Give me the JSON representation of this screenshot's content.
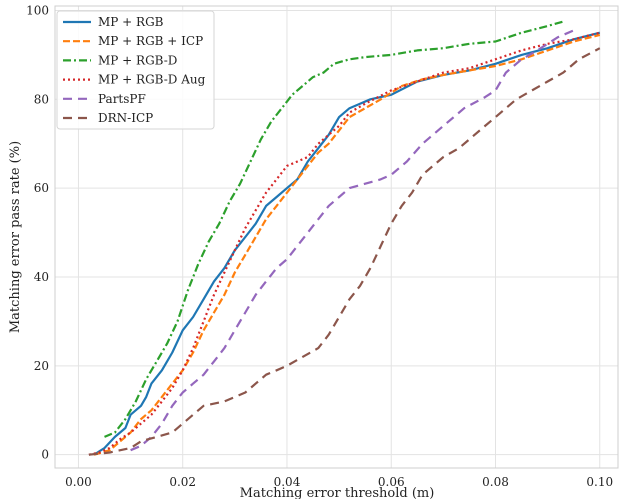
{
  "chart_data": {
    "type": "line",
    "title": "",
    "xlabel": "Matching error threshold (m)",
    "ylabel": "Matching error pass rate (%)",
    "xlim": [
      -0.0045,
      0.1035
    ],
    "ylim": [
      -3,
      101
    ],
    "xticks": [
      0.0,
      0.02,
      0.04,
      0.06,
      0.08,
      0.1
    ],
    "xtick_labels": [
      "0.00",
      "0.02",
      "0.04",
      "0.06",
      "0.08",
      "0.10"
    ],
    "yticks": [
      0,
      20,
      40,
      60,
      80,
      100
    ],
    "ytick_labels": [
      "0",
      "20",
      "40",
      "60",
      "80",
      "100"
    ],
    "grid": true,
    "legend_position": "top-left",
    "series": [
      {
        "name": "MP + RGB",
        "color": "#1f77b4",
        "style": "solid",
        "points": [
          [
            0.003,
            0
          ],
          [
            0.005,
            1.5
          ],
          [
            0.007,
            4
          ],
          [
            0.009,
            6
          ],
          [
            0.01,
            9
          ],
          [
            0.012,
            11
          ],
          [
            0.013,
            13
          ],
          [
            0.014,
            16
          ],
          [
            0.016,
            19
          ],
          [
            0.018,
            23
          ],
          [
            0.02,
            28
          ],
          [
            0.022,
            31
          ],
          [
            0.024,
            35
          ],
          [
            0.026,
            39
          ],
          [
            0.028,
            42
          ],
          [
            0.03,
            46
          ],
          [
            0.032,
            49
          ],
          [
            0.034,
            52
          ],
          [
            0.036,
            56
          ],
          [
            0.038,
            58
          ],
          [
            0.04,
            60
          ],
          [
            0.042,
            62
          ],
          [
            0.044,
            66
          ],
          [
            0.046,
            69
          ],
          [
            0.048,
            72
          ],
          [
            0.05,
            76
          ],
          [
            0.052,
            78
          ],
          [
            0.054,
            79
          ],
          [
            0.056,
            80
          ],
          [
            0.06,
            81
          ],
          [
            0.065,
            84
          ],
          [
            0.07,
            85.5
          ],
          [
            0.075,
            86.5
          ],
          [
            0.08,
            88
          ],
          [
            0.085,
            90
          ],
          [
            0.09,
            91.5
          ],
          [
            0.095,
            93.5
          ],
          [
            0.1,
            95
          ]
        ]
      },
      {
        "name": "MP + RGB + ICP",
        "color": "#ff7f0e",
        "style": "dashed",
        "points": [
          [
            0.003,
            0
          ],
          [
            0.006,
            1
          ],
          [
            0.008,
            3
          ],
          [
            0.01,
            5
          ],
          [
            0.012,
            8
          ],
          [
            0.014,
            10
          ],
          [
            0.016,
            13
          ],
          [
            0.018,
            16
          ],
          [
            0.02,
            19
          ],
          [
            0.022,
            23
          ],
          [
            0.024,
            28
          ],
          [
            0.026,
            32
          ],
          [
            0.028,
            36
          ],
          [
            0.03,
            41
          ],
          [
            0.032,
            45
          ],
          [
            0.034,
            49
          ],
          [
            0.036,
            53
          ],
          [
            0.038,
            56
          ],
          [
            0.04,
            59
          ],
          [
            0.042,
            62
          ],
          [
            0.044,
            65
          ],
          [
            0.046,
            68
          ],
          [
            0.048,
            70
          ],
          [
            0.05,
            73
          ],
          [
            0.052,
            76
          ],
          [
            0.055,
            78
          ],
          [
            0.058,
            80
          ],
          [
            0.062,
            83
          ],
          [
            0.066,
            84.5
          ],
          [
            0.07,
            85.5
          ],
          [
            0.075,
            86.5
          ],
          [
            0.08,
            87.5
          ],
          [
            0.085,
            89
          ],
          [
            0.09,
            91
          ],
          [
            0.095,
            93
          ],
          [
            0.1,
            94.5
          ]
        ]
      },
      {
        "name": "MP + RGB-D",
        "color": "#2ca02c",
        "style": "dashdot",
        "points": [
          [
            0.005,
            4
          ],
          [
            0.007,
            5
          ],
          [
            0.009,
            8
          ],
          [
            0.011,
            12
          ],
          [
            0.013,
            17
          ],
          [
            0.015,
            21
          ],
          [
            0.017,
            25
          ],
          [
            0.019,
            30
          ],
          [
            0.021,
            37
          ],
          [
            0.023,
            43
          ],
          [
            0.025,
            48
          ],
          [
            0.027,
            52
          ],
          [
            0.029,
            57
          ],
          [
            0.031,
            61
          ],
          [
            0.033,
            66
          ],
          [
            0.035,
            71
          ],
          [
            0.037,
            75
          ],
          [
            0.039,
            78
          ],
          [
            0.041,
            81
          ],
          [
            0.043,
            83
          ],
          [
            0.045,
            85
          ],
          [
            0.047,
            86
          ],
          [
            0.049,
            88
          ],
          [
            0.052,
            89
          ],
          [
            0.055,
            89.5
          ],
          [
            0.06,
            90
          ],
          [
            0.065,
            91
          ],
          [
            0.07,
            91.5
          ],
          [
            0.075,
            92.5
          ],
          [
            0.08,
            93
          ],
          [
            0.085,
            95
          ],
          [
            0.09,
            96.5
          ],
          [
            0.093,
            97.5
          ]
        ]
      },
      {
        "name": "MP + RGB-D Aug",
        "color": "#d62728",
        "style": "dotted",
        "points": [
          [
            0.002,
            0
          ],
          [
            0.004,
            0.5
          ],
          [
            0.006,
            1.5
          ],
          [
            0.008,
            3.5
          ],
          [
            0.01,
            5
          ],
          [
            0.012,
            7
          ],
          [
            0.014,
            9
          ],
          [
            0.016,
            12
          ],
          [
            0.018,
            15
          ],
          [
            0.02,
            19
          ],
          [
            0.022,
            24
          ],
          [
            0.024,
            30
          ],
          [
            0.026,
            36
          ],
          [
            0.028,
            41
          ],
          [
            0.03,
            46
          ],
          [
            0.032,
            51
          ],
          [
            0.034,
            55
          ],
          [
            0.036,
            59
          ],
          [
            0.038,
            62
          ],
          [
            0.04,
            65
          ],
          [
            0.042,
            66
          ],
          [
            0.044,
            67
          ],
          [
            0.046,
            70
          ],
          [
            0.048,
            72
          ],
          [
            0.05,
            74
          ],
          [
            0.052,
            77
          ],
          [
            0.055,
            79
          ],
          [
            0.06,
            82
          ],
          [
            0.065,
            84
          ],
          [
            0.07,
            86
          ],
          [
            0.075,
            87
          ],
          [
            0.08,
            89
          ],
          [
            0.085,
            91
          ],
          [
            0.09,
            92.5
          ],
          [
            0.095,
            93.5
          ],
          [
            0.1,
            95
          ]
        ]
      },
      {
        "name": "PartsPF",
        "color": "#9467bd",
        "style": "longdash",
        "points": [
          [
            0.01,
            1
          ],
          [
            0.012,
            2
          ],
          [
            0.014,
            4
          ],
          [
            0.016,
            7
          ],
          [
            0.018,
            11
          ],
          [
            0.02,
            14
          ],
          [
            0.022,
            16
          ],
          [
            0.024,
            18
          ],
          [
            0.026,
            21
          ],
          [
            0.028,
            24
          ],
          [
            0.03,
            28
          ],
          [
            0.032,
            32
          ],
          [
            0.034,
            36
          ],
          [
            0.036,
            39
          ],
          [
            0.038,
            42
          ],
          [
            0.04,
            44
          ],
          [
            0.042,
            47
          ],
          [
            0.044,
            50
          ],
          [
            0.046,
            53
          ],
          [
            0.048,
            56
          ],
          [
            0.05,
            58
          ],
          [
            0.052,
            60
          ],
          [
            0.055,
            61
          ],
          [
            0.058,
            62
          ],
          [
            0.06,
            63
          ],
          [
            0.063,
            66
          ],
          [
            0.066,
            70
          ],
          [
            0.07,
            74
          ],
          [
            0.074,
            78
          ],
          [
            0.078,
            80.5
          ],
          [
            0.08,
            82
          ],
          [
            0.082,
            86
          ],
          [
            0.085,
            89
          ],
          [
            0.088,
            91
          ],
          [
            0.092,
            94
          ],
          [
            0.095,
            95.5
          ]
        ]
      },
      {
        "name": "DRN-ICP",
        "color": "#8c564b",
        "style": "longdash",
        "points": [
          [
            0.002,
            0
          ],
          [
            0.006,
            0.5
          ],
          [
            0.01,
            1.5
          ],
          [
            0.012,
            3
          ],
          [
            0.015,
            4
          ],
          [
            0.018,
            5
          ],
          [
            0.02,
            7
          ],
          [
            0.022,
            9
          ],
          [
            0.024,
            11
          ],
          [
            0.028,
            12
          ],
          [
            0.032,
            14
          ],
          [
            0.034,
            16
          ],
          [
            0.036,
            18
          ],
          [
            0.038,
            19
          ],
          [
            0.04,
            20
          ],
          [
            0.043,
            22
          ],
          [
            0.046,
            24
          ],
          [
            0.048,
            27
          ],
          [
            0.05,
            31
          ],
          [
            0.052,
            35
          ],
          [
            0.054,
            38
          ],
          [
            0.056,
            42
          ],
          [
            0.058,
            47
          ],
          [
            0.06,
            52
          ],
          [
            0.062,
            56
          ],
          [
            0.064,
            59
          ],
          [
            0.066,
            63
          ],
          [
            0.068,
            65
          ],
          [
            0.07,
            67
          ],
          [
            0.073,
            69
          ],
          [
            0.076,
            72
          ],
          [
            0.078,
            74
          ],
          [
            0.08,
            76
          ],
          [
            0.082,
            78
          ],
          [
            0.084,
            80
          ],
          [
            0.087,
            82
          ],
          [
            0.09,
            84
          ],
          [
            0.093,
            86
          ],
          [
            0.096,
            89
          ],
          [
            0.1,
            91.5
          ]
        ]
      }
    ]
  }
}
